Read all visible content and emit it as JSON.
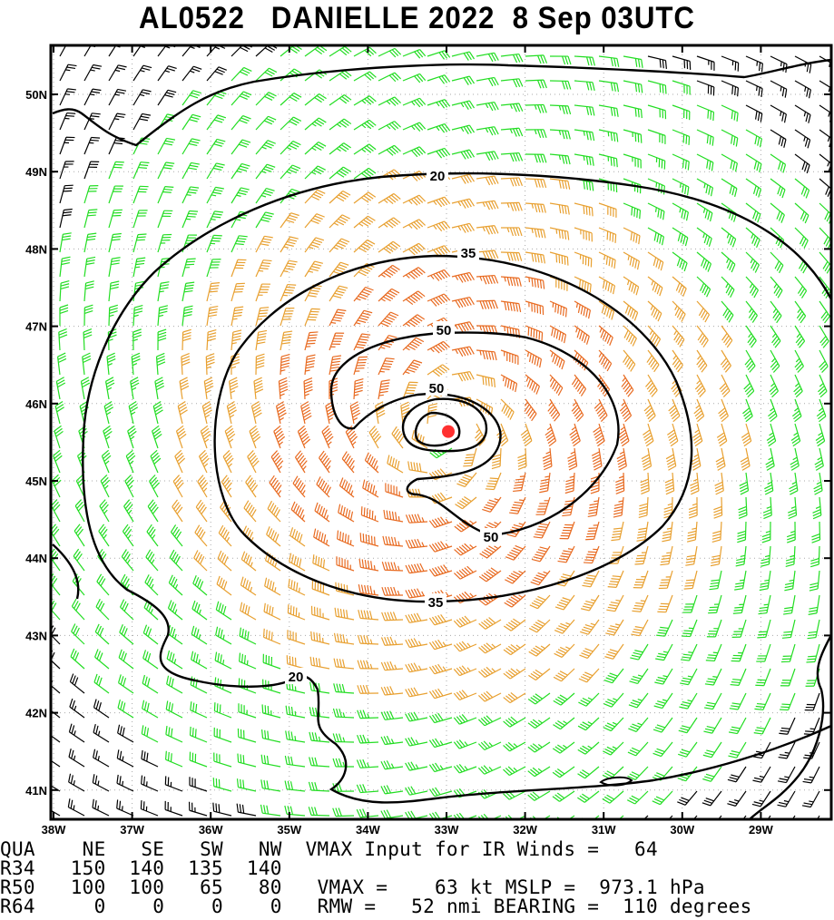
{
  "title": {
    "storm_id": "AL0522",
    "storm_name": "DANIELLE 2022",
    "datetime": "8 Sep 03UTC"
  },
  "map": {
    "lon_range": [
      -38,
      -28.2
    ],
    "lat_range": [
      40.6,
      50.6
    ],
    "lon_labels": [
      "38W",
      "37W",
      "36W",
      "35W",
      "34W",
      "33W",
      "32W",
      "31W",
      "30W",
      "29W"
    ],
    "lat_labels": [
      "50N",
      "49N",
      "48N",
      "47N",
      "46N",
      "45N",
      "44N",
      "43N",
      "42N",
      "41N"
    ],
    "center": {
      "lon": -33.0,
      "lat": 45.65
    },
    "center_color": "#ff3030",
    "contour_labels": [
      "20",
      "35",
      "50",
      "50",
      "50",
      "35",
      "20"
    ],
    "colors": {
      "below_34kt": "#000000",
      "34_to_50kt": "#22dd22",
      "50_to_64kt": "#e8a030",
      "64kt_plus": "#e86a20"
    }
  },
  "table": {
    "header": [
      "QUA",
      "NE",
      "SE",
      "SW",
      "NW"
    ],
    "rows": [
      {
        "label": "R34",
        "values": [
          "150",
          "140",
          "135",
          "140"
        ]
      },
      {
        "label": "R50",
        "values": [
          "100",
          "100",
          "65",
          "80"
        ]
      },
      {
        "label": "R64",
        "values": [
          "0",
          "0",
          "0",
          "0"
        ]
      }
    ]
  },
  "summary": {
    "vmax_input_label": "VMAX Input for IR Winds =",
    "vmax_input_value": "64",
    "vmax_label": "VMAX =",
    "vmax_value": "63",
    "vmax_unit": "kt",
    "mslp_label": "MSLP =",
    "mslp_value": "973.1",
    "mslp_unit": "hPa",
    "rmw_label": "RMW =",
    "rmw_value": "52",
    "rmw_unit": "nmi",
    "bearing_label": "BEARING =",
    "bearing_value": "110",
    "bearing_unit": "degrees"
  }
}
